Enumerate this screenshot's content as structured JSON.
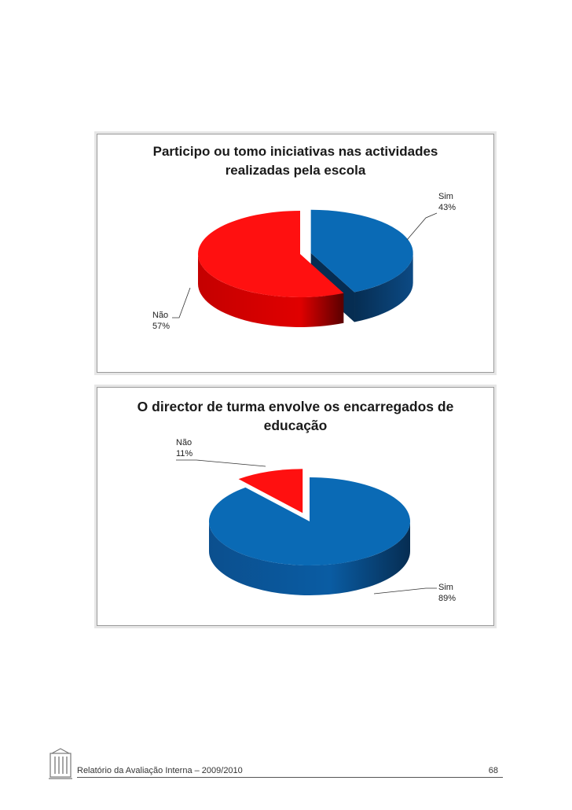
{
  "chart_data": [
    {
      "type": "pie",
      "title": "Participo ou tomo iniciativas nas actividades realizadas pela escola",
      "title_lines": [
        "Participo ou tomo iniciativas nas actividades",
        "realizadas pela escola"
      ],
      "slices": [
        {
          "label": "Sim",
          "value": 43,
          "value_label": "43%",
          "color": "#0a6ab5"
        },
        {
          "label": "Não",
          "value": 57,
          "value_label": "57%",
          "color": "#ff1010"
        }
      ]
    },
    {
      "type": "pie",
      "title": "O director de turma envolve os encarregados de educação",
      "title_lines": [
        "O director de turma envolve os encarregados de",
        "educação"
      ],
      "slices": [
        {
          "label": "Sim",
          "value": 89,
          "value_label": "89%",
          "color": "#0a6ab5"
        },
        {
          "label": "Não",
          "value": 11,
          "value_label": "11%",
          "color": "#ff1010"
        }
      ]
    }
  ],
  "footer": {
    "text": "Relatório da Avaliação Interna – 2009/2010",
    "page_number": "68"
  }
}
